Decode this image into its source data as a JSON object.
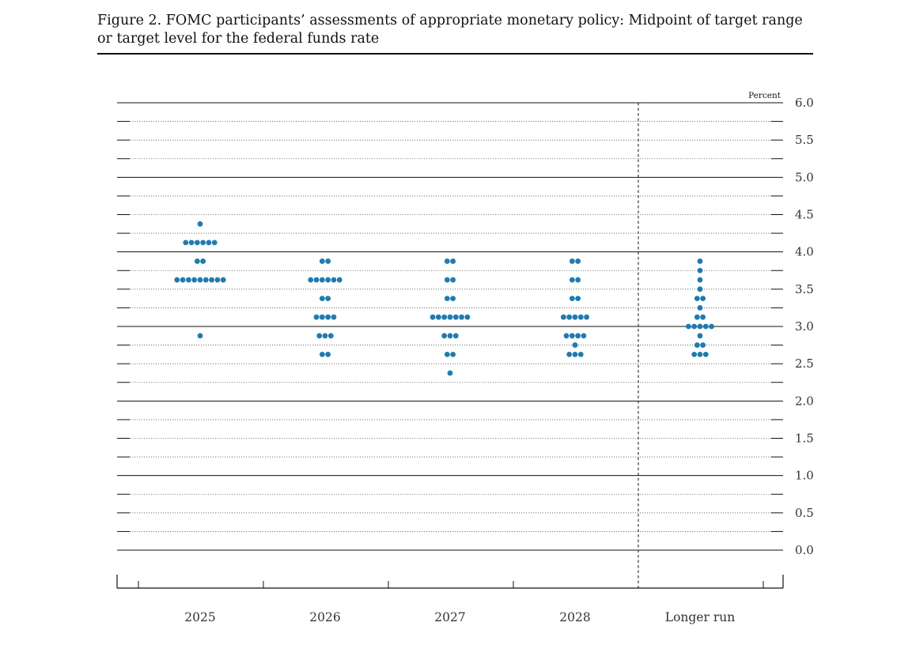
{
  "figure": {
    "title_line1": "Figure 2. FOMC participants’ assessments of appropriate monetary policy: Midpoint of target range",
    "title_line2": "or target level for the federal funds rate"
  },
  "chart_data": {
    "type": "scatter",
    "ylabel": "Percent",
    "ylim": [
      0.0,
      6.0
    ],
    "y_ticks": [
      "6.0",
      "5.5",
      "5.0",
      "4.5",
      "4.0",
      "3.5",
      "3.0",
      "2.5",
      "2.0",
      "1.5",
      "1.0",
      "0.5",
      "0.0"
    ],
    "categories": [
      "2025",
      "2026",
      "2027",
      "2028",
      "Longer run"
    ],
    "dot_color": "#1f7bb0",
    "series": [
      {
        "category": "2025",
        "points": [
          {
            "y": 4.375,
            "count": 1
          },
          {
            "y": 4.125,
            "count": 6
          },
          {
            "y": 3.875,
            "count": 2
          },
          {
            "y": 3.625,
            "count": 9
          },
          {
            "y": 2.875,
            "count": 1
          }
        ]
      },
      {
        "category": "2026",
        "points": [
          {
            "y": 3.875,
            "count": 2
          },
          {
            "y": 3.625,
            "count": 6
          },
          {
            "y": 3.375,
            "count": 2
          },
          {
            "y": 3.125,
            "count": 4
          },
          {
            "y": 2.875,
            "count": 3
          },
          {
            "y": 2.625,
            "count": 2
          }
        ]
      },
      {
        "category": "2027",
        "points": [
          {
            "y": 3.875,
            "count": 2
          },
          {
            "y": 3.625,
            "count": 2
          },
          {
            "y": 3.375,
            "count": 2
          },
          {
            "y": 3.125,
            "count": 7
          },
          {
            "y": 2.875,
            "count": 3
          },
          {
            "y": 2.625,
            "count": 2
          },
          {
            "y": 2.375,
            "count": 1
          }
        ]
      },
      {
        "category": "2028",
        "points": [
          {
            "y": 3.875,
            "count": 2
          },
          {
            "y": 3.625,
            "count": 2
          },
          {
            "y": 3.375,
            "count": 2
          },
          {
            "y": 3.125,
            "count": 5
          },
          {
            "y": 2.875,
            "count": 4
          },
          {
            "y": 2.75,
            "count": 1
          },
          {
            "y": 2.625,
            "count": 3
          }
        ]
      },
      {
        "category": "Longer run",
        "points": [
          {
            "y": 3.875,
            "count": 1
          },
          {
            "y": 3.75,
            "count": 1
          },
          {
            "y": 3.625,
            "count": 1
          },
          {
            "y": 3.5,
            "count": 1
          },
          {
            "y": 3.375,
            "count": 2
          },
          {
            "y": 3.25,
            "count": 1
          },
          {
            "y": 3.125,
            "count": 2
          },
          {
            "y": 3.0,
            "count": 5
          },
          {
            "y": 2.875,
            "count": 1
          },
          {
            "y": 2.75,
            "count": 2
          },
          {
            "y": 2.625,
            "count": 3
          }
        ]
      }
    ]
  }
}
